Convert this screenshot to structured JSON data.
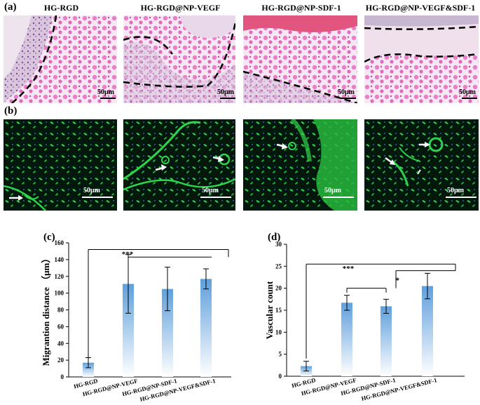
{
  "panel_labels": {
    "a": "(a)",
    "b": "(b)",
    "c": "(c)",
    "d": "(d)"
  },
  "column_titles": [
    "HG-RGD",
    "HG-RGD@NP-VEGF",
    "HG-RGD@NP-SDF-1",
    "HG-RGD@NP-VEGF&SDF-1"
  ],
  "scale_bar_label": "50μm",
  "colors": {
    "he_stain": "#e879c6",
    "he_bg": "#f4e4f0",
    "fluor_green": "#2fd44a",
    "fluor_bg": "#02140a",
    "bar_top": "#5f9fdc",
    "bar_bottom": "#ffffff"
  },
  "chart_data": [
    {
      "type": "bar",
      "panel": "(c)",
      "categories": [
        "HG-RGD",
        "HG-RGD@NP-VEGF",
        "HG-RGD@NP-SDF-1",
        "HG-RGD@NP-VEGF&SDF-1"
      ],
      "values": [
        17,
        111,
        105,
        117
      ],
      "errors": [
        6,
        35,
        26,
        12
      ],
      "ylabel": "Migrantion distance （μm）",
      "ylim": [
        0,
        160
      ],
      "yticks": [
        0,
        20,
        40,
        60,
        80,
        100,
        120,
        140,
        160
      ],
      "significance": [
        "***"
      ]
    },
    {
      "type": "bar",
      "panel": "(d)",
      "categories": [
        "HG-RGD",
        "HG-RGD@NP-VEGF",
        "HG-RGD@NP-SDF-1",
        "HG-RGD@NP-VEGF&SDF-1"
      ],
      "values": [
        2.3,
        16.7,
        15.9,
        20.5
      ],
      "errors": [
        1.1,
        1.7,
        1.6,
        2.9
      ],
      "ylabel": "Vascular count",
      "ylim": [
        0,
        30
      ],
      "yticks": [
        0,
        5,
        10,
        15,
        20,
        25,
        30
      ],
      "significance": [
        "***",
        "*"
      ]
    }
  ]
}
